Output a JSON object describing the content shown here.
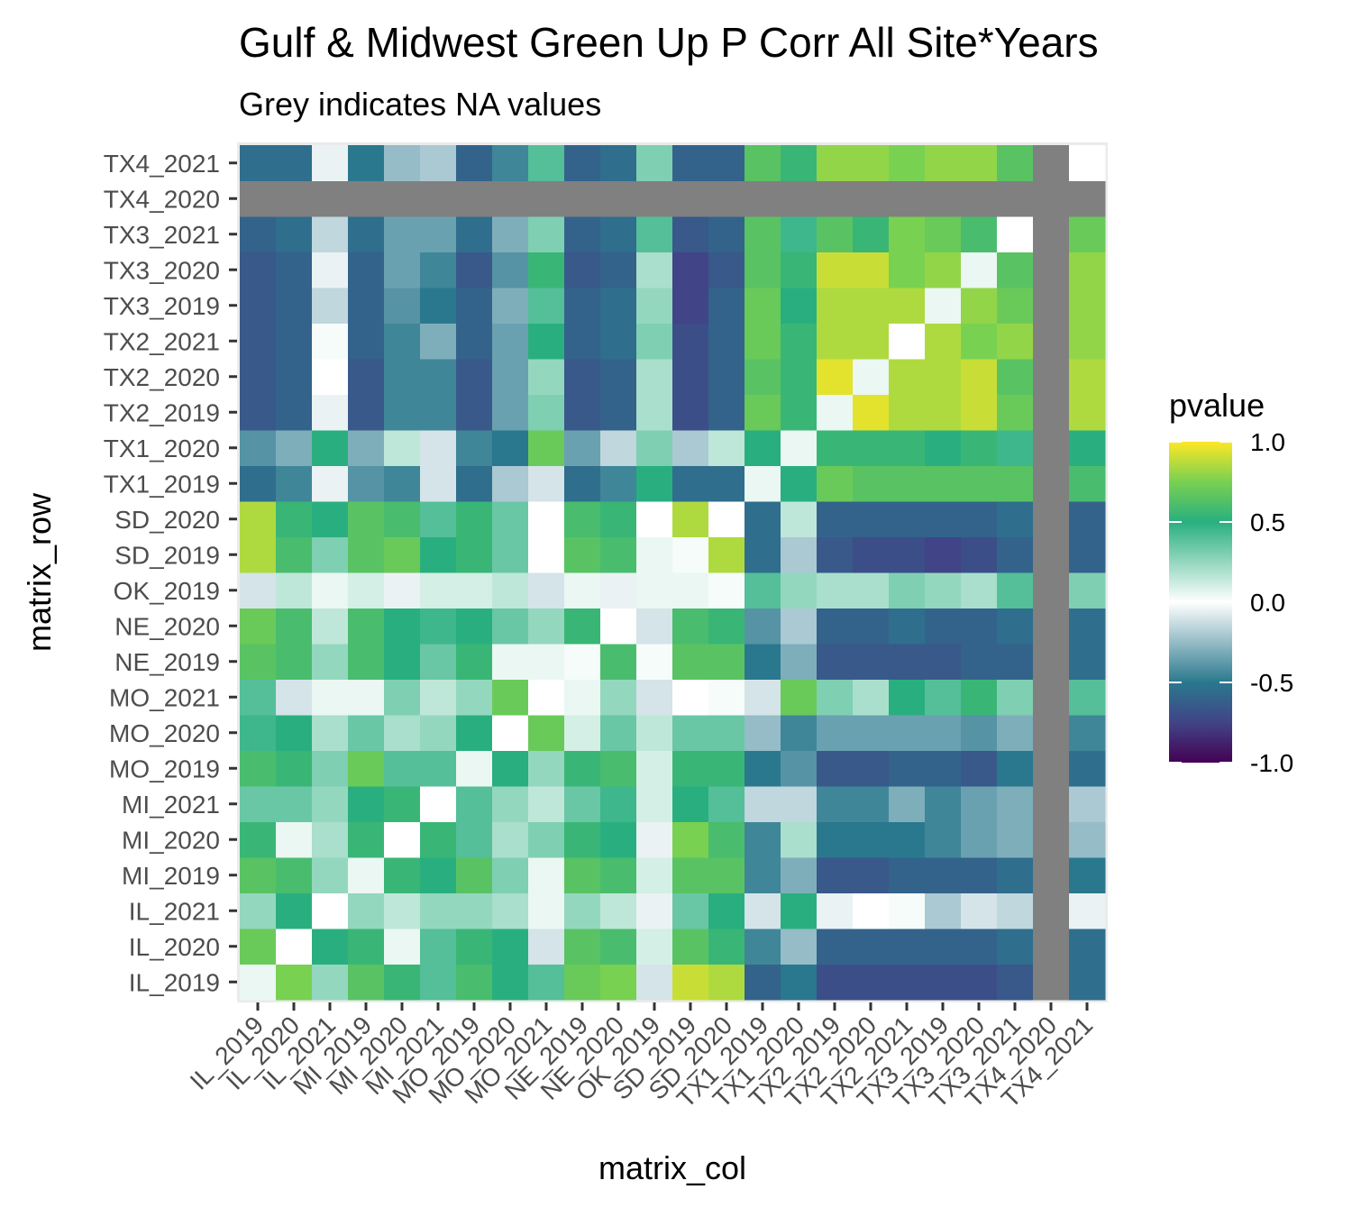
{
  "chart_data": {
    "type": "heatmap",
    "title": "Gulf & Midwest Green Up P Corr All Site*Years",
    "subtitle": "Grey indicates NA values",
    "xlabel": "matrix_col",
    "ylabel": "matrix_row",
    "legend_title": "pvalue",
    "legend_placement": "right",
    "legend_ticks": [
      "1.0",
      "0.5",
      "0.0",
      "-0.5",
      "-1.0"
    ],
    "legend_tick_values": [
      1.0,
      0.5,
      0.0,
      -0.5,
      -1.0
    ],
    "value_range": [
      -1,
      1
    ],
    "na_color": "#808080",
    "grid": true,
    "categories": [
      "IL_2019",
      "IL_2020",
      "IL_2021",
      "MI_2019",
      "MI_2020",
      "MI_2021",
      "MO_2019",
      "MO_2020",
      "MO_2021",
      "NE_2019",
      "NE_2020",
      "OK_2019",
      "SD_2019",
      "SD_2020",
      "TX1_2019",
      "TX1_2020",
      "TX2_2019",
      "TX2_2020",
      "TX2_2021",
      "TX3_2019",
      "TX3_2020",
      "TX3_2021",
      "TX4_2020",
      "TX4_2021"
    ],
    "rows": [
      {
        "name": "IL_2019",
        "values": [
          0.05,
          0.75,
          0.25,
          0.65,
          0.55,
          0.4,
          0.6,
          0.5,
          0.4,
          0.7,
          0.75,
          -0.1,
          0.9,
          0.85,
          -0.6,
          -0.5,
          -0.7,
          -0.7,
          -0.7,
          -0.7,
          -0.7,
          -0.65,
          null,
          -0.55
        ]
      },
      {
        "name": "IL_2020",
        "values": [
          0.7,
          0.0,
          0.5,
          0.55,
          0.05,
          0.4,
          0.55,
          0.5,
          -0.1,
          0.65,
          0.6,
          0.1,
          0.65,
          0.55,
          -0.45,
          -0.25,
          -0.6,
          -0.6,
          -0.6,
          -0.6,
          -0.6,
          -0.55,
          null,
          -0.55
        ]
      },
      {
        "name": "IL_2021",
        "values": [
          0.25,
          0.5,
          0.0,
          0.25,
          0.15,
          0.25,
          0.25,
          0.2,
          0.05,
          0.25,
          0.15,
          -0.05,
          0.35,
          0.5,
          -0.1,
          0.5,
          -0.05,
          0.0,
          0.02,
          -0.2,
          -0.1,
          -0.15,
          null,
          -0.05
        ]
      },
      {
        "name": "MI_2019",
        "values": [
          0.65,
          0.6,
          0.25,
          0.05,
          0.55,
          0.5,
          0.65,
          0.3,
          0.05,
          0.65,
          0.6,
          0.1,
          0.65,
          0.65,
          -0.45,
          -0.3,
          -0.65,
          -0.65,
          -0.6,
          -0.6,
          -0.6,
          -0.55,
          null,
          -0.5
        ]
      },
      {
        "name": "MI_2020",
        "values": [
          0.55,
          0.05,
          0.2,
          0.55,
          0.0,
          0.55,
          0.4,
          0.2,
          0.3,
          0.55,
          0.5,
          -0.05,
          0.75,
          0.6,
          -0.45,
          0.2,
          -0.5,
          -0.5,
          -0.5,
          -0.45,
          -0.35,
          -0.3,
          null,
          -0.25
        ]
      },
      {
        "name": "MI_2021",
        "values": [
          0.35,
          0.35,
          0.25,
          0.5,
          0.55,
          0.0,
          0.4,
          0.25,
          0.15,
          0.35,
          0.45,
          0.1,
          0.5,
          0.4,
          -0.15,
          -0.15,
          -0.45,
          -0.45,
          -0.3,
          -0.45,
          -0.35,
          -0.3,
          null,
          -0.2
        ]
      },
      {
        "name": "MO_2019",
        "values": [
          0.6,
          0.55,
          0.3,
          0.7,
          0.4,
          0.4,
          0.05,
          0.5,
          0.25,
          0.55,
          0.6,
          0.1,
          0.55,
          0.55,
          -0.5,
          -0.4,
          -0.65,
          -0.65,
          -0.6,
          -0.6,
          -0.65,
          -0.5,
          null,
          -0.55
        ]
      },
      {
        "name": "MO_2020",
        "values": [
          0.45,
          0.5,
          0.2,
          0.35,
          0.2,
          0.25,
          0.5,
          0.0,
          0.7,
          0.1,
          0.35,
          0.15,
          0.35,
          0.35,
          -0.25,
          -0.45,
          -0.35,
          -0.35,
          -0.35,
          -0.35,
          -0.4,
          -0.3,
          null,
          -0.45
        ]
      },
      {
        "name": "MO_2021",
        "values": [
          0.4,
          -0.1,
          0.05,
          0.05,
          0.3,
          0.15,
          0.25,
          0.7,
          0.0,
          0.05,
          0.25,
          -0.1,
          0.0,
          0.02,
          -0.1,
          0.7,
          0.3,
          0.2,
          0.5,
          0.4,
          0.55,
          0.3,
          null,
          0.4
        ]
      },
      {
        "name": "NE_2019",
        "values": [
          0.65,
          0.6,
          0.25,
          0.6,
          0.5,
          0.35,
          0.55,
          0.05,
          0.05,
          0.02,
          0.6,
          0.02,
          0.65,
          0.65,
          -0.5,
          -0.3,
          -0.65,
          -0.65,
          -0.65,
          -0.65,
          -0.6,
          -0.6,
          null,
          -0.55
        ]
      },
      {
        "name": "NE_2020",
        "values": [
          0.7,
          0.6,
          0.15,
          0.6,
          0.5,
          0.45,
          0.5,
          0.35,
          0.25,
          0.55,
          0.0,
          -0.1,
          0.6,
          0.55,
          -0.4,
          -0.2,
          -0.6,
          -0.6,
          -0.55,
          -0.6,
          -0.6,
          -0.55,
          null,
          -0.55
        ]
      },
      {
        "name": "OK_2019",
        "values": [
          -0.1,
          0.15,
          0.05,
          0.1,
          -0.05,
          0.1,
          0.1,
          0.15,
          -0.1,
          0.05,
          -0.05,
          0.05,
          0.05,
          0.02,
          0.4,
          0.25,
          0.2,
          0.2,
          0.3,
          0.25,
          0.2,
          0.4,
          null,
          0.3
        ]
      },
      {
        "name": "SD_2019",
        "values": [
          0.85,
          0.6,
          0.3,
          0.65,
          0.7,
          0.5,
          0.55,
          0.35,
          0.0,
          0.65,
          0.6,
          0.05,
          0.02,
          0.85,
          -0.55,
          -0.2,
          -0.65,
          -0.7,
          -0.7,
          -0.75,
          -0.7,
          -0.6,
          null,
          -0.6
        ]
      },
      {
        "name": "SD_2020",
        "values": [
          0.85,
          0.55,
          0.5,
          0.65,
          0.6,
          0.4,
          0.55,
          0.35,
          0.0,
          0.6,
          0.55,
          0.0,
          0.85,
          0.0,
          -0.55,
          0.15,
          -0.6,
          -0.6,
          -0.6,
          -0.6,
          -0.6,
          -0.55,
          null,
          -0.6
        ]
      },
      {
        "name": "TX1_2019",
        "values": [
          -0.55,
          -0.45,
          -0.05,
          -0.4,
          -0.45,
          -0.1,
          -0.55,
          -0.2,
          -0.1,
          -0.55,
          -0.45,
          0.5,
          -0.55,
          -0.55,
          0.05,
          0.5,
          0.7,
          0.65,
          0.65,
          0.65,
          0.65,
          0.65,
          null,
          0.6
        ]
      },
      {
        "name": "TX1_2020",
        "values": [
          -0.4,
          -0.3,
          0.5,
          -0.3,
          0.15,
          -0.1,
          -0.45,
          -0.5,
          0.7,
          -0.35,
          -0.15,
          0.3,
          -0.2,
          0.15,
          0.5,
          0.05,
          0.55,
          0.55,
          0.55,
          0.5,
          0.55,
          0.45,
          null,
          0.5
        ]
      },
      {
        "name": "TX2_2019",
        "values": [
          -0.65,
          -0.6,
          -0.05,
          -0.65,
          -0.45,
          -0.45,
          -0.65,
          -0.35,
          0.3,
          -0.65,
          -0.6,
          0.2,
          -0.7,
          -0.6,
          0.7,
          0.55,
          0.05,
          0.95,
          0.85,
          0.85,
          0.9,
          0.7,
          null,
          0.85
        ]
      },
      {
        "name": "TX2_2020",
        "values": [
          -0.65,
          -0.6,
          0.0,
          -0.65,
          -0.45,
          -0.45,
          -0.65,
          -0.35,
          0.25,
          -0.65,
          -0.6,
          0.2,
          -0.7,
          -0.6,
          0.65,
          0.55,
          0.95,
          0.05,
          0.85,
          0.85,
          0.9,
          0.65,
          null,
          0.85
        ]
      },
      {
        "name": "TX2_2021",
        "values": [
          -0.65,
          -0.6,
          0.02,
          -0.6,
          -0.45,
          -0.3,
          -0.6,
          -0.35,
          0.5,
          -0.6,
          -0.55,
          0.3,
          -0.7,
          -0.6,
          0.7,
          0.55,
          0.85,
          0.85,
          0.0,
          0.85,
          0.75,
          0.8,
          null,
          0.8
        ]
      },
      {
        "name": "TX3_2019",
        "values": [
          -0.65,
          -0.6,
          -0.15,
          -0.6,
          -0.4,
          -0.5,
          -0.6,
          -0.3,
          0.4,
          -0.6,
          -0.55,
          0.25,
          -0.75,
          -0.6,
          0.7,
          0.5,
          0.85,
          0.85,
          0.85,
          0.05,
          0.8,
          0.7,
          null,
          0.8
        ]
      },
      {
        "name": "TX3_2020",
        "values": [
          -0.65,
          -0.6,
          -0.05,
          -0.6,
          -0.35,
          -0.45,
          -0.65,
          -0.4,
          0.55,
          -0.65,
          -0.6,
          0.2,
          -0.75,
          -0.65,
          0.65,
          0.55,
          0.9,
          0.9,
          0.75,
          0.8,
          0.05,
          0.65,
          null,
          0.8
        ]
      },
      {
        "name": "TX3_2021",
        "values": [
          -0.6,
          -0.55,
          -0.15,
          -0.55,
          -0.35,
          -0.35,
          -0.55,
          -0.3,
          0.3,
          -0.6,
          -0.55,
          0.4,
          -0.65,
          -0.6,
          0.65,
          0.45,
          0.65,
          0.55,
          0.75,
          0.7,
          0.6,
          0.0,
          null,
          0.7
        ]
      },
      {
        "name": "TX4_2020",
        "values": [
          null,
          null,
          null,
          null,
          null,
          null,
          null,
          null,
          null,
          null,
          null,
          null,
          null,
          null,
          null,
          null,
          null,
          null,
          null,
          null,
          null,
          null,
          null,
          null
        ]
      },
      {
        "name": "TX4_2021",
        "values": [
          -0.55,
          -0.55,
          -0.05,
          -0.5,
          -0.25,
          -0.2,
          -0.6,
          -0.45,
          0.4,
          -0.6,
          -0.55,
          0.3,
          -0.6,
          -0.6,
          0.65,
          0.55,
          0.8,
          0.8,
          0.75,
          0.8,
          0.8,
          0.65,
          null,
          0.0
        ]
      }
    ]
  }
}
